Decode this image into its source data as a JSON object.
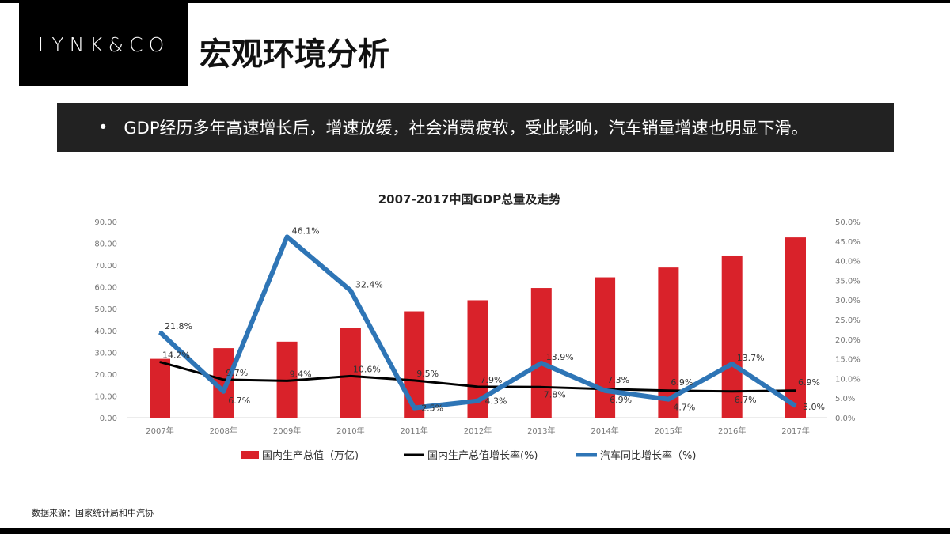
{
  "header": {
    "logo": "LYNK&CO",
    "title": "宏观环境分析"
  },
  "banner": {
    "bullet": "•",
    "text": "GDP经历多年高速增长后，增速放缓，社会消费疲软，受此影响，汽车销量增速也明显下滑。"
  },
  "source": "数据来源：国家统计局和中汽协",
  "chart_data": {
    "type": "bar+line",
    "title": "2007-2017中国GDP总量及走势",
    "categories": [
      "2007年",
      "2008年",
      "2009年",
      "2010年",
      "2011年",
      "2012年",
      "2013年",
      "2014年",
      "2015年",
      "2016年",
      "2017年"
    ],
    "left_axis": {
      "ylim": [
        0,
        90
      ],
      "ticks": [
        "0.00",
        "10.00",
        "20.00",
        "30.00",
        "40.00",
        "50.00",
        "60.00",
        "70.00",
        "80.00",
        "90.00"
      ]
    },
    "right_axis": {
      "ylim": [
        0,
        50
      ],
      "ticks": [
        "0.0%",
        "5.0%",
        "10.0%",
        "15.0%",
        "20.0%",
        "25.0%",
        "30.0%",
        "35.0%",
        "40.0%",
        "45.0%",
        "50.0%"
      ]
    },
    "series": [
      {
        "name": "国内生产总值（万亿)",
        "type": "bar",
        "axis": "left",
        "color": "#d9222a",
        "values": [
          27.0,
          31.9,
          34.9,
          41.2,
          48.8,
          53.9,
          59.5,
          64.4,
          68.9,
          74.4,
          82.7
        ]
      },
      {
        "name": "国内生产总值增长率(%)",
        "type": "line",
        "axis": "right",
        "color": "#000000",
        "values": [
          14.2,
          9.7,
          9.4,
          10.6,
          9.5,
          7.9,
          7.8,
          7.3,
          6.9,
          6.7,
          6.9
        ],
        "labels": [
          "14.2%",
          "9.7%",
          "9.4%",
          "10.6%",
          "9.5%",
          "7.9%",
          "7.8%",
          "7.3%",
          "6.9%",
          "6.7%",
          "6.9%"
        ]
      },
      {
        "name": "汽车同比增长率（%)",
        "type": "line",
        "axis": "right",
        "color": "#2e75b6",
        "values": [
          21.8,
          6.7,
          46.1,
          32.4,
          2.5,
          4.3,
          13.9,
          6.9,
          4.7,
          13.7,
          3.0
        ],
        "labels": [
          "21.8%",
          "6.7%",
          "46.1%",
          "32.4%",
          "2.5%",
          "4.3%",
          "13.9%",
          "6.9%",
          "4.7%",
          "13.7%",
          "3.0%"
        ]
      }
    ],
    "legend": "bottom"
  }
}
